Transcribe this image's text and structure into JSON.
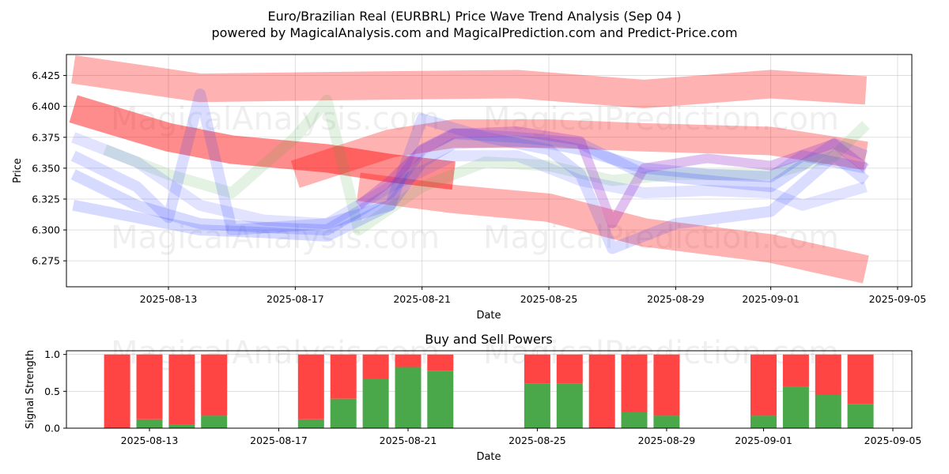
{
  "chart_data": [
    {
      "type": "line",
      "title": "Euro/Brazilian Real (EURBRL) Price Wave Trend Analysis (Sep 04 )",
      "subtitle": "powered by MagicalAnalysis.com and MagicalPrediction.com and Predict-Price.com",
      "xlabel": "Date",
      "ylabel": "Price",
      "x_ticks": [
        "2025-08-13",
        "2025-08-17",
        "2025-08-21",
        "2025-08-25",
        "2025-08-29",
        "2025-09-01",
        "2025-09-05"
      ],
      "y_ticks": [
        "6.275",
        "6.300",
        "6.325",
        "6.350",
        "6.375",
        "6.400",
        "6.425"
      ],
      "ylim": [
        6.254,
        6.442
      ],
      "grid": true,
      "watermarks": [
        "MagicalAnalysis.com",
        "MagicalPrediction.com",
        "MagicalAnalysis.com",
        "MagicalPrediction.com"
      ],
      "series": [
        {
          "name": "red-upper-band",
          "color": "#ff0000",
          "alpha": 0.3,
          "width": 36,
          "x": [
            "2025-08-10",
            "2025-08-14",
            "2025-08-20",
            "2025-08-24",
            "2025-08-28",
            "2025-09-01",
            "2025-09-04"
          ],
          "y": [
            6.43,
            6.415,
            6.417,
            6.418,
            6.41,
            6.418,
            6.413
          ]
        },
        {
          "name": "red-decline-band",
          "color": "#ff0000",
          "alpha": 0.45,
          "width": 36,
          "x": [
            "2025-08-10",
            "2025-08-13",
            "2025-08-15",
            "2025-08-18",
            "2025-08-20",
            "2025-08-22"
          ],
          "y": [
            6.398,
            6.375,
            6.365,
            6.358,
            6.35,
            6.344
          ]
        },
        {
          "name": "red-mid-band",
          "color": "#ff0000",
          "alpha": 0.3,
          "width": 36,
          "x": [
            "2025-08-17",
            "2025-08-20",
            "2025-08-22",
            "2025-08-25",
            "2025-08-28",
            "2025-09-01",
            "2025-09-04"
          ],
          "y": [
            6.345,
            6.37,
            6.378,
            6.378,
            6.375,
            6.372,
            6.36
          ]
        },
        {
          "name": "red-lower-band",
          "color": "#ff0000",
          "alpha": 0.3,
          "width": 36,
          "x": [
            "2025-08-19",
            "2025-08-22",
            "2025-08-25",
            "2025-08-28",
            "2025-09-01",
            "2025-09-04"
          ],
          "y": [
            6.335,
            6.325,
            6.318,
            6.298,
            6.285,
            6.268
          ]
        },
        {
          "name": "green-wave",
          "color": "#44aa44",
          "alpha": 0.15,
          "width": 14,
          "x": [
            "2025-08-11",
            "2025-08-13",
            "2025-08-15",
            "2025-08-17",
            "2025-08-18",
            "2025-08-19",
            "2025-08-21",
            "2025-08-23",
            "2025-08-25",
            "2025-08-27",
            "2025-08-29",
            "2025-09-01",
            "2025-09-03",
            "2025-09-04"
          ],
          "y": [
            6.365,
            6.345,
            6.33,
            6.375,
            6.405,
            6.3,
            6.335,
            6.355,
            6.352,
            6.34,
            6.345,
            6.345,
            6.36,
            6.385
          ]
        },
        {
          "name": "blue-wave-1",
          "color": "#3344ff",
          "alpha": 0.2,
          "width": 14,
          "x": [
            "2025-08-10",
            "2025-08-12",
            "2025-08-14",
            "2025-08-16",
            "2025-08-18",
            "2025-08-20",
            "2025-08-21",
            "2025-08-22",
            "2025-08-24",
            "2025-08-25",
            "2025-08-26",
            "2025-08-28",
            "2025-08-30",
            "2025-09-01",
            "2025-09-02",
            "2025-09-04"
          ],
          "y": [
            6.32,
            6.31,
            6.3,
            6.298,
            6.295,
            6.32,
            6.355,
            6.37,
            6.372,
            6.37,
            6.365,
            6.35,
            6.345,
            6.343,
            6.36,
            6.35
          ]
        },
        {
          "name": "blue-wave-2",
          "color": "#3344ff",
          "alpha": 0.2,
          "width": 14,
          "x": [
            "2025-08-10",
            "2025-08-12",
            "2025-08-14",
            "2025-08-16",
            "2025-08-18",
            "2025-08-20",
            "2025-08-21",
            "2025-08-22",
            "2025-08-24",
            "2025-08-26",
            "2025-08-28",
            "2025-08-30",
            "2025-09-01",
            "2025-09-03",
            "2025-09-04"
          ],
          "y": [
            6.345,
            6.32,
            6.305,
            6.302,
            6.3,
            6.33,
            6.365,
            6.378,
            6.375,
            6.37,
            6.345,
            6.34,
            6.335,
            6.37,
            6.36
          ]
        },
        {
          "name": "blue-wave-3",
          "color": "#3344ff",
          "alpha": 0.18,
          "width": 14,
          "x": [
            "2025-08-10",
            "2025-08-12",
            "2025-08-13",
            "2025-08-14",
            "2025-08-15",
            "2025-08-18",
            "2025-08-20",
            "2025-08-21",
            "2025-08-23",
            "2025-08-25",
            "2025-08-26",
            "2025-08-27",
            "2025-08-29",
            "2025-09-01",
            "2025-09-03",
            "2025-09-04"
          ],
          "y": [
            6.36,
            6.335,
            6.31,
            6.41,
            6.3,
            6.305,
            6.32,
            6.39,
            6.375,
            6.365,
            6.345,
            6.285,
            6.305,
            6.315,
            6.36,
            6.34
          ]
        },
        {
          "name": "blue-wave-4",
          "color": "#3344ff",
          "alpha": 0.15,
          "width": 14,
          "x": [
            "2025-08-10",
            "2025-08-12",
            "2025-08-14",
            "2025-08-16",
            "2025-08-18",
            "2025-08-20",
            "2025-08-22",
            "2025-08-24",
            "2025-08-26",
            "2025-08-28",
            "2025-08-30",
            "2025-09-01",
            "2025-09-02",
            "2025-09-04"
          ],
          "y": [
            6.375,
            6.355,
            6.32,
            6.308,
            6.305,
            6.335,
            6.36,
            6.36,
            6.34,
            6.33,
            6.332,
            6.33,
            6.32,
            6.335
          ]
        },
        {
          "name": "purple-wave",
          "color": "#9933cc",
          "alpha": 0.3,
          "width": 12,
          "x": [
            "2025-08-19",
            "2025-08-20",
            "2025-08-21",
            "2025-08-22",
            "2025-08-24",
            "2025-08-26",
            "2025-08-27",
            "2025-08-28",
            "2025-08-30",
            "2025-09-01",
            "2025-09-03",
            "2025-09-04"
          ],
          "y": [
            6.32,
            6.34,
            6.365,
            6.378,
            6.38,
            6.372,
            6.305,
            6.35,
            6.358,
            6.352,
            6.37,
            6.35
          ]
        }
      ]
    },
    {
      "type": "bar",
      "title": "Buy and Sell Powers",
      "xlabel": "Date",
      "ylabel": "Signal Strength",
      "x_ticks": [
        "2025-08-13",
        "2025-08-17",
        "2025-08-21",
        "2025-08-25",
        "2025-08-29",
        "2025-09-01",
        "2025-09-05"
      ],
      "y_ticks": [
        "0.0",
        "0.5",
        "1.0"
      ],
      "ylim": [
        0,
        1.05
      ],
      "dates": [
        "2025-08-12",
        "2025-08-13",
        "2025-08-14",
        "2025-08-15",
        "2025-08-18",
        "2025-08-19",
        "2025-08-20",
        "2025-08-21",
        "2025-08-22",
        "2025-08-25",
        "2025-08-26",
        "2025-08-27",
        "2025-08-28",
        "2025-08-29",
        "2025-09-01",
        "2025-09-02",
        "2025-09-03",
        "2025-09-04"
      ],
      "series": [
        {
          "name": "Buy",
          "color": "#4aa84a",
          "values": [
            0.0,
            0.12,
            0.05,
            0.17,
            0.12,
            0.4,
            0.67,
            0.83,
            0.78,
            0.61,
            0.61,
            0.0,
            0.22,
            0.17,
            0.17,
            0.56,
            0.45,
            0.33
          ]
        },
        {
          "name": "Sell",
          "color": "#ff4444",
          "values": [
            1.0,
            0.88,
            0.95,
            0.83,
            0.88,
            0.6,
            0.33,
            0.17,
            0.22,
            0.39,
            0.39,
            1.0,
            0.78,
            0.83,
            0.83,
            0.44,
            0.55,
            0.67
          ]
        }
      ],
      "watermarks": [
        "MagicalAnalysis.com",
        "MagicalPrediction.com"
      ]
    }
  ]
}
